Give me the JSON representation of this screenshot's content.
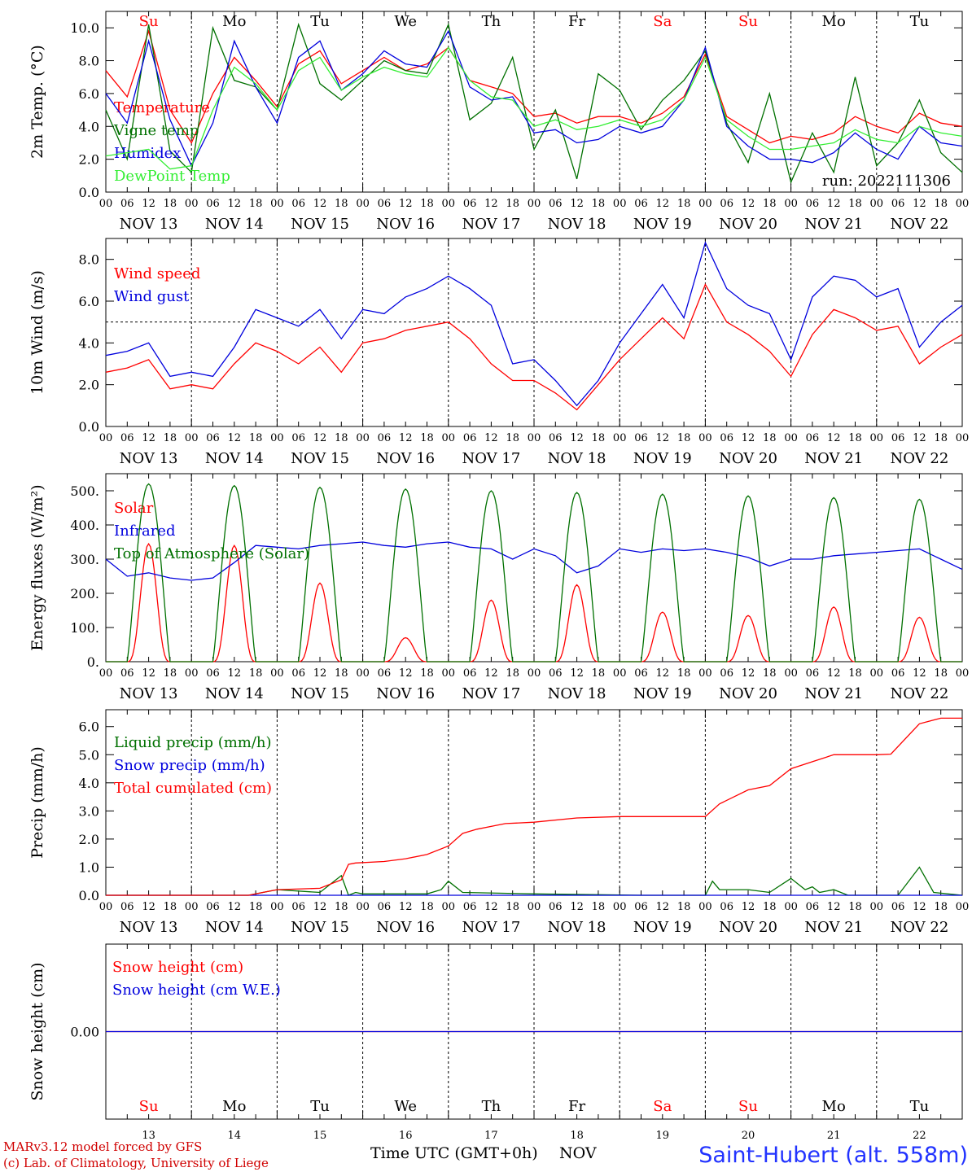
{
  "chart_data": [
    {
      "type": "line",
      "ylabel": "2m Temp. (°C)",
      "ylim": [
        0,
        11
      ],
      "yticks": [
        "0.0",
        "2.0",
        "4.0",
        "6.0",
        "8.0",
        "10.0"
      ],
      "run_label": "run: 2022111306",
      "series": [
        {
          "name": "Temperature",
          "color": "#ff0000",
          "x": [
            0,
            6,
            12,
            18,
            24,
            30,
            36,
            42,
            48,
            54,
            60,
            66,
            72,
            78,
            84,
            90,
            96,
            102,
            108,
            114,
            120,
            126,
            132,
            138,
            144,
            150,
            156,
            162,
            168,
            174,
            180,
            186,
            192,
            198,
            204,
            210,
            216,
            222,
            228,
            234,
            240
          ],
          "values": [
            7.4,
            5.8,
            9.8,
            5.0,
            3.0,
            6.0,
            8.2,
            6.8,
            5.2,
            7.8,
            8.6,
            6.6,
            7.4,
            8.2,
            7.4,
            7.8,
            8.8,
            6.8,
            6.4,
            6.0,
            4.6,
            4.8,
            4.2,
            4.6,
            4.6,
            4.2,
            4.8,
            5.8,
            8.4,
            4.6,
            3.8,
            3.0,
            3.4,
            3.2,
            3.6,
            4.6,
            4.0,
            3.6,
            4.8,
            4.2,
            4.0
          ]
        },
        {
          "name": "Vigne temp",
          "color": "#007000",
          "x": [
            0,
            6,
            12,
            18,
            24,
            30,
            36,
            42,
            48,
            54,
            60,
            66,
            72,
            78,
            84,
            90,
            96,
            102,
            108,
            114,
            120,
            126,
            132,
            138,
            144,
            150,
            156,
            162,
            168,
            174,
            180,
            186,
            192,
            198,
            204,
            210,
            216,
            222,
            228,
            234,
            240
          ],
          "values": [
            5.0,
            2.0,
            10.2,
            2.5,
            1.2,
            10.0,
            6.8,
            6.4,
            5.0,
            10.2,
            6.6,
            5.6,
            6.8,
            8.0,
            7.4,
            7.2,
            10.2,
            4.4,
            5.4,
            8.2,
            2.6,
            5.0,
            0.8,
            7.2,
            6.2,
            3.8,
            5.6,
            6.8,
            8.6,
            4.2,
            1.8,
            6.0,
            0.6,
            3.6,
            1.2,
            7.0,
            1.6,
            3.0,
            5.6,
            2.4,
            1.2
          ]
        },
        {
          "name": "Humidex",
          "color": "#0000dd",
          "x": [
            0,
            6,
            12,
            18,
            24,
            30,
            36,
            42,
            48,
            54,
            60,
            66,
            72,
            78,
            84,
            90,
            96,
            102,
            108,
            114,
            120,
            126,
            132,
            138,
            144,
            150,
            156,
            162,
            168,
            174,
            180,
            186,
            192,
            198,
            204,
            210,
            216,
            222,
            228,
            234,
            240
          ],
          "values": [
            6.0,
            4.2,
            9.2,
            4.4,
            1.6,
            4.2,
            9.2,
            6.4,
            4.2,
            8.2,
            9.2,
            6.2,
            7.2,
            8.6,
            7.8,
            7.6,
            9.8,
            6.4,
            5.6,
            5.8,
            3.6,
            3.8,
            3.0,
            3.2,
            4.0,
            3.6,
            4.0,
            5.6,
            8.8,
            4.0,
            2.8,
            2.0,
            2.0,
            1.8,
            2.4,
            3.6,
            2.6,
            2.0,
            4.0,
            3.0,
            2.8
          ]
        },
        {
          "name": "DewPoint Temp",
          "color": "#33ee33",
          "x": [
            0,
            6,
            12,
            18,
            24,
            30,
            36,
            42,
            48,
            54,
            60,
            66,
            72,
            78,
            84,
            90,
            96,
            102,
            108,
            114,
            120,
            126,
            132,
            138,
            144,
            150,
            156,
            162,
            168,
            174,
            180,
            186,
            192,
            198,
            204,
            210,
            216,
            222,
            228,
            234,
            240
          ],
          "values": [
            2.2,
            2.4,
            2.6,
            1.4,
            1.6,
            5.0,
            7.6,
            6.6,
            5.0,
            7.4,
            8.2,
            6.2,
            7.0,
            7.6,
            7.2,
            7.0,
            8.8,
            6.8,
            5.8,
            5.6,
            4.0,
            4.4,
            3.8,
            4.0,
            4.4,
            4.0,
            4.4,
            5.6,
            8.2,
            4.4,
            3.4,
            2.6,
            2.6,
            2.8,
            3.0,
            3.8,
            3.2,
            3.0,
            4.0,
            3.6,
            3.4
          ]
        }
      ]
    },
    {
      "type": "line",
      "ylabel": "10m Wind (m/s)",
      "ylim": [
        0,
        9
      ],
      "yticks": [
        "0.0",
        "2.0",
        "4.0",
        "6.0",
        "8.0"
      ],
      "reference_line": 5.0,
      "series": [
        {
          "name": "Wind speed",
          "color": "#ff0000",
          "x": [
            0,
            6,
            12,
            18,
            24,
            30,
            36,
            42,
            48,
            54,
            60,
            66,
            72,
            78,
            84,
            90,
            96,
            102,
            108,
            114,
            120,
            126,
            132,
            138,
            144,
            150,
            156,
            162,
            168,
            174,
            180,
            186,
            192,
            198,
            204,
            210,
            216,
            222,
            228,
            234,
            240
          ],
          "values": [
            2.6,
            2.8,
            3.2,
            1.8,
            2.0,
            1.8,
            3.0,
            4.0,
            3.6,
            3.0,
            3.8,
            2.6,
            4.0,
            4.2,
            4.6,
            4.8,
            5.0,
            4.2,
            3.0,
            2.2,
            2.2,
            1.6,
            0.8,
            2.0,
            3.2,
            4.2,
            5.2,
            4.2,
            6.8,
            5.0,
            4.4,
            3.6,
            2.4,
            4.4,
            5.6,
            5.2,
            4.6,
            4.8,
            3.0,
            3.8,
            4.4
          ]
        },
        {
          "name": "Wind gust",
          "color": "#0000dd",
          "x": [
            0,
            6,
            12,
            18,
            24,
            30,
            36,
            42,
            48,
            54,
            60,
            66,
            72,
            78,
            84,
            90,
            96,
            102,
            108,
            114,
            120,
            126,
            132,
            138,
            144,
            150,
            156,
            162,
            168,
            174,
            180,
            186,
            192,
            198,
            204,
            210,
            216,
            222,
            228,
            234,
            240
          ],
          "values": [
            3.4,
            3.6,
            4.0,
            2.4,
            2.6,
            2.4,
            3.8,
            5.6,
            5.2,
            4.8,
            5.6,
            4.2,
            5.6,
            5.4,
            6.2,
            6.6,
            7.2,
            6.6,
            5.8,
            3.0,
            3.2,
            2.2,
            1.0,
            2.2,
            4.0,
            5.4,
            6.8,
            5.2,
            8.8,
            6.6,
            5.8,
            5.4,
            3.2,
            6.2,
            7.2,
            7.0,
            6.2,
            6.6,
            3.8,
            5.0,
            5.8
          ]
        }
      ]
    },
    {
      "type": "line",
      "ylabel": "Energy fluxes (W/m²)",
      "ylim": [
        0,
        550
      ],
      "yticks": [
        "0.",
        "100.",
        "200.",
        "300.",
        "400.",
        "500."
      ],
      "series": [
        {
          "name": "Solar",
          "color": "#ff0000",
          "kind": "diurnal",
          "peaks": [
            345,
            340,
            230,
            70,
            180,
            225,
            145,
            135,
            160,
            130
          ]
        },
        {
          "name": "Infrared",
          "color": "#0000dd",
          "x": [
            0,
            6,
            12,
            18,
            24,
            30,
            36,
            42,
            48,
            54,
            60,
            66,
            72,
            78,
            84,
            90,
            96,
            102,
            108,
            114,
            120,
            126,
            132,
            138,
            144,
            150,
            156,
            162,
            168,
            174,
            180,
            186,
            192,
            198,
            204,
            210,
            216,
            222,
            228,
            234,
            240
          ],
          "values": [
            300,
            250,
            260,
            245,
            238,
            245,
            290,
            340,
            335,
            330,
            340,
            345,
            350,
            340,
            335,
            345,
            350,
            335,
            330,
            300,
            330,
            310,
            260,
            280,
            330,
            320,
            330,
            325,
            330,
            320,
            305,
            280,
            300,
            300,
            310,
            315,
            320,
            325,
            330,
            300,
            270
          ]
        },
        {
          "name": "Top of Atmosphere (Solar)",
          "color": "#007000",
          "kind": "diurnal",
          "peaks": [
            520,
            515,
            510,
            505,
            500,
            495,
            490,
            485,
            480,
            475
          ]
        }
      ]
    },
    {
      "type": "line",
      "ylabel": "Precip (mm/h)",
      "ylim": [
        0,
        6.6
      ],
      "yticks": [
        "0.0",
        "1.0",
        "2.0",
        "3.0",
        "4.0",
        "5.0",
        "6.0"
      ],
      "series": [
        {
          "name": "Liquid precip (mm/h)",
          "color": "#007000",
          "x": [
            0,
            30,
            40,
            44,
            48,
            60,
            66,
            68,
            70,
            72,
            90,
            94,
            96,
            100,
            120,
            150,
            168,
            170,
            172,
            180,
            186,
            192,
            196,
            198,
            200,
            204,
            208,
            210,
            216,
            222,
            228,
            232,
            240
          ],
          "values": [
            0,
            0,
            0,
            0.1,
            0.2,
            0.1,
            0.7,
            0,
            0.1,
            0.05,
            0.05,
            0.2,
            0.5,
            0.1,
            0.05,
            0,
            0,
            0.5,
            0.2,
            0.2,
            0.1,
            0.6,
            0.2,
            0.3,
            0.1,
            0.2,
            0,
            0,
            0,
            0,
            1.0,
            0.1,
            0
          ]
        },
        {
          "name": "Snow precip (mm/h)",
          "color": "#0000dd",
          "x": [
            0,
            240
          ],
          "values": [
            0,
            0
          ]
        },
        {
          "name": "Total cumulated (cm)",
          "color": "#ff0000",
          "x": [
            0,
            40,
            44,
            48,
            60,
            66,
            68,
            70,
            78,
            84,
            90,
            96,
            100,
            104,
            112,
            120,
            132,
            144,
            156,
            168,
            172,
            176,
            180,
            186,
            192,
            198,
            204,
            210,
            216,
            220,
            228,
            234,
            240
          ],
          "values": [
            0,
            0,
            0.1,
            0.2,
            0.25,
            0.55,
            1.1,
            1.15,
            1.2,
            1.3,
            1.45,
            1.75,
            2.2,
            2.35,
            2.55,
            2.6,
            2.75,
            2.8,
            2.8,
            2.8,
            3.25,
            3.5,
            3.75,
            3.9,
            4.5,
            4.75,
            5.0,
            5.0,
            5.0,
            5.02,
            6.1,
            6.3,
            6.3
          ]
        }
      ]
    },
    {
      "type": "line",
      "ylabel": "Snow height (cm)",
      "ylim": [
        -1,
        1
      ],
      "yticks": [
        "0.00"
      ],
      "series": [
        {
          "name": "Snow height (cm)",
          "color": "#ff0000",
          "x": [
            0,
            240
          ],
          "values": [
            0,
            0
          ]
        },
        {
          "name": "Snow height (cm W.E.)",
          "color": "#0000dd",
          "x": [
            0,
            240
          ],
          "values": [
            0,
            0
          ]
        }
      ]
    }
  ],
  "hour_labels": [
    "00",
    "06",
    "12",
    "18"
  ],
  "final_hour": "00",
  "dates": [
    "NOV 13",
    "NOV 14",
    "NOV 15",
    "NOV 16",
    "NOV 17",
    "NOV 18",
    "NOV 19",
    "NOV 20",
    "NOV 21",
    "NOV 22"
  ],
  "days": [
    {
      "label": "Su",
      "color": "#ff0000"
    },
    {
      "label": "Mo",
      "color": "#000000"
    },
    {
      "label": "Tu",
      "color": "#000000"
    },
    {
      "label": "We",
      "color": "#000000"
    },
    {
      "label": "Th",
      "color": "#000000"
    },
    {
      "label": "Fr",
      "color": "#000000"
    },
    {
      "label": "Sa",
      "color": "#ff0000"
    },
    {
      "label": "Su",
      "color": "#ff0000"
    },
    {
      "label": "Mo",
      "color": "#000000"
    },
    {
      "label": "Tu",
      "color": "#000000"
    }
  ],
  "day_numbers": [
    "13",
    "14",
    "15",
    "16",
    "17",
    "18",
    "19",
    "20",
    "21",
    "22"
  ],
  "footer": {
    "model": "MARv3.12 model forced by GFS",
    "credit": "(c) Lab. of Climatology, University of Liege",
    "xlabel": "Time UTC (GMT+0h)",
    "month": "NOV",
    "station": "Saint-Hubert (alt. 558m)"
  }
}
